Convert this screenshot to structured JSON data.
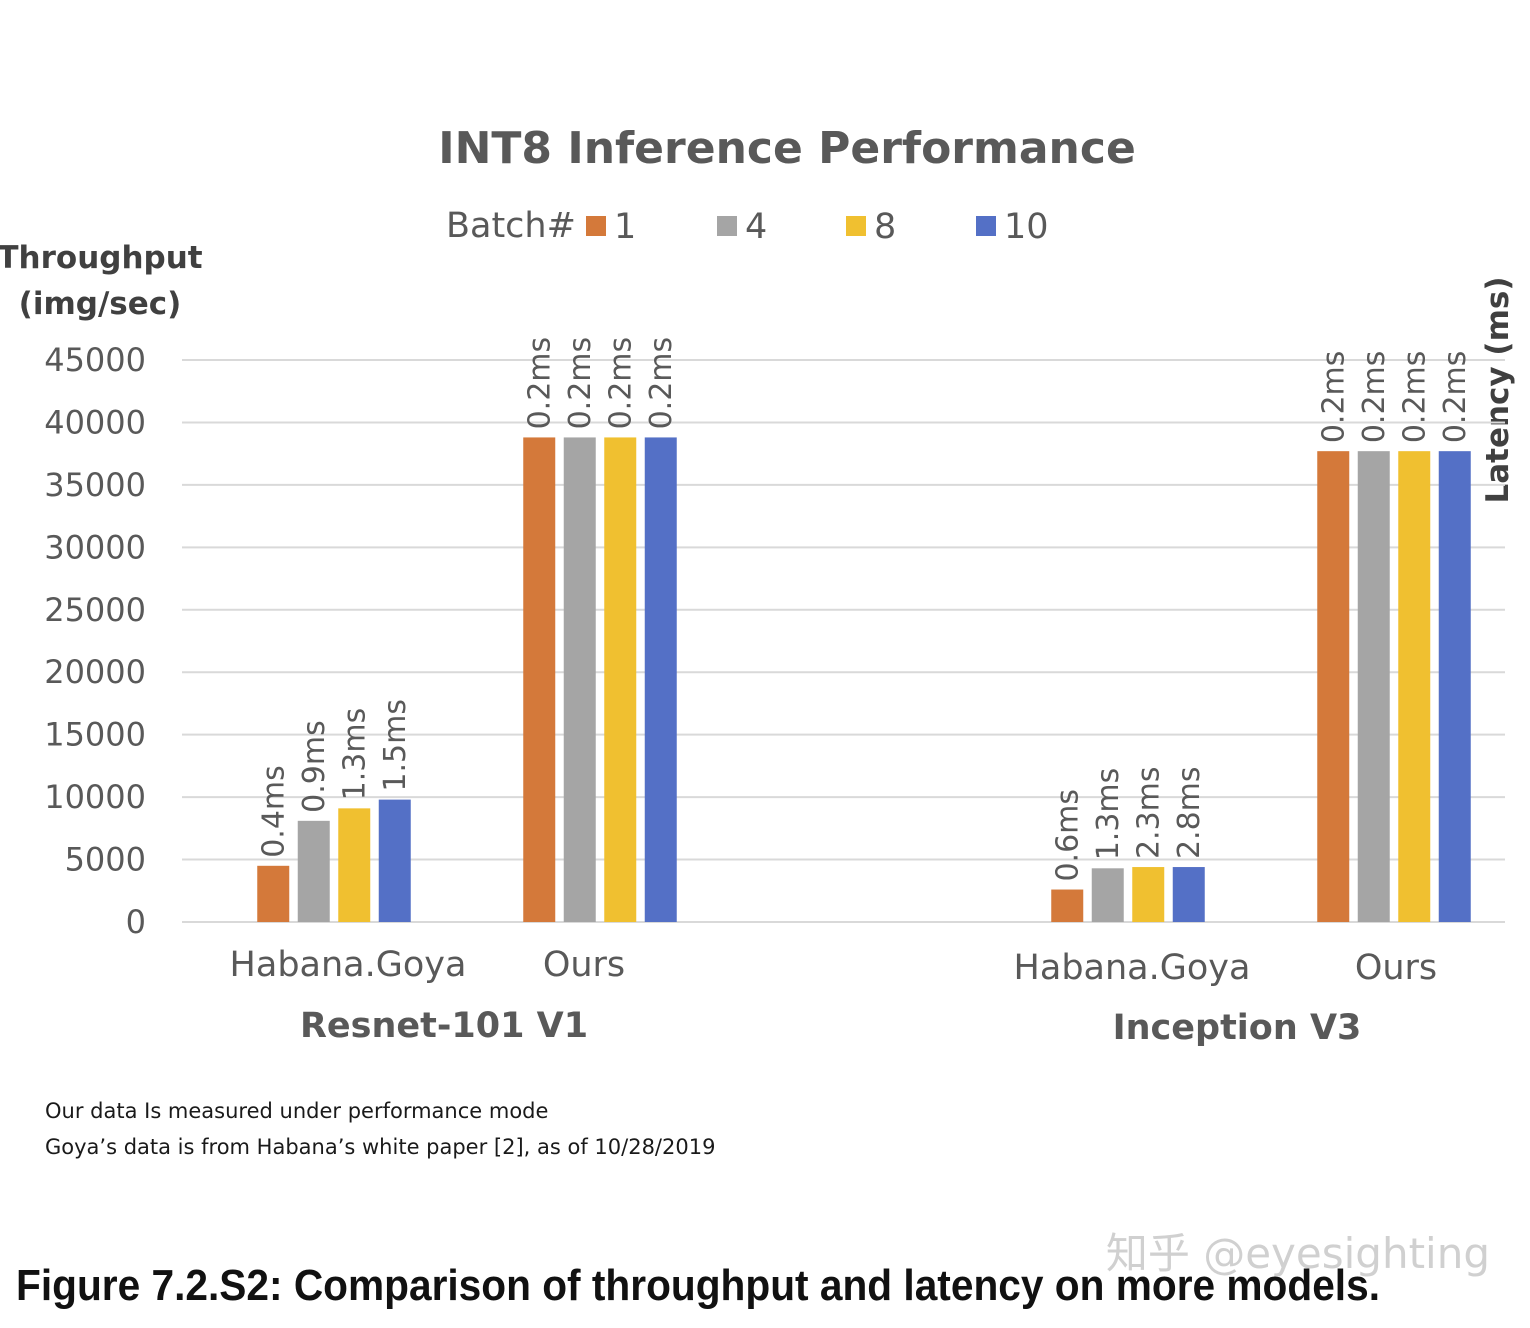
{
  "chart_data": {
    "type": "bar",
    "title": "INT8 Inference Performance",
    "ylabel": "Throughput (img/sec)",
    "ylabel_lines": [
      "Throughput",
      "(img/sec)"
    ],
    "y2label": "Latency (ms)",
    "ylim": [
      0,
      45000
    ],
    "yticks": [
      "0",
      "5000",
      "10000",
      "15000",
      "20000",
      "25000",
      "30000",
      "35000",
      "40000",
      "45000"
    ],
    "grid": true,
    "legend": {
      "title": "Batch#",
      "placement": "top",
      "entries": [
        "1",
        "4",
        "8",
        "10"
      ]
    },
    "colors": [
      "#d4793a",
      "#a5a5a5",
      "#f0c030",
      "#5470c6"
    ],
    "groups": [
      {
        "name": "Resnet-101 V1",
        "categories": [
          {
            "name": "Habana.Goya",
            "values": [
              4500,
              8100,
              9100,
              9800
            ],
            "labels": [
              "0.4ms",
              "0.9ms",
              "1.3ms",
              "1.5ms"
            ]
          },
          {
            "name": "Ours",
            "values": [
              38800,
              38800,
              38800,
              38800
            ],
            "labels": [
              "0.2ms",
              "0.2ms",
              "0.2ms",
              "0.2ms"
            ]
          }
        ]
      },
      {
        "name": "Inception V3",
        "categories": [
          {
            "name": "Habana.Goya",
            "values": [
              2600,
              4300,
              4400,
              4400
            ],
            "labels": [
              "0.6ms",
              "1.3ms",
              "2.3ms",
              "2.8ms"
            ]
          },
          {
            "name": "Ours",
            "values": [
              37700,
              37700,
              37700,
              37700
            ],
            "labels": [
              "0.2ms",
              "0.2ms",
              "0.2ms",
              "0.2ms"
            ]
          }
        ]
      }
    ]
  },
  "notes": [
    "Our data Is measured under performance mode",
    "Goya’s data is from Habana’s white paper [2], as of 10/28/2019"
  ],
  "caption": "Figure 7.2.S2: Comparison of throughput and latency on more models.",
  "watermark": "知乎 @eyesighting"
}
